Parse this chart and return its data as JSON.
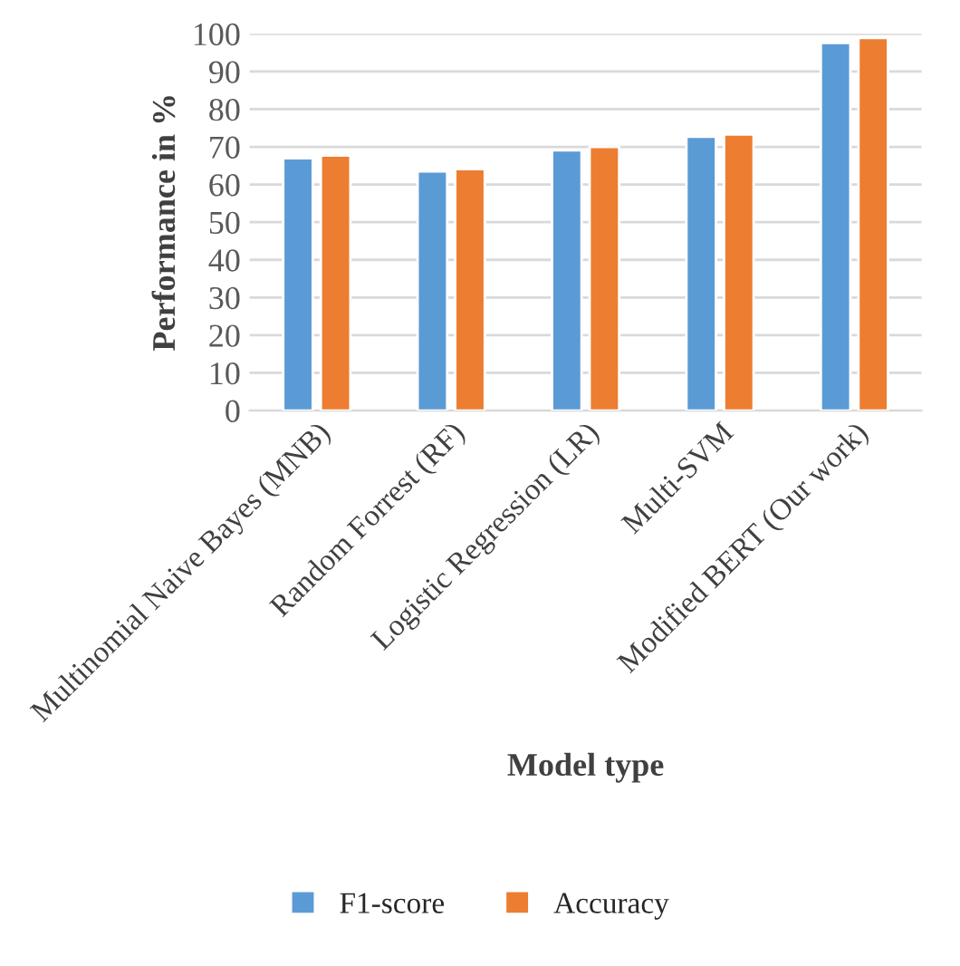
{
  "chart_data": {
    "type": "bar",
    "xlabel": "Model type",
    "ylabel": "Performance in %",
    "categories": [
      "Multinomial Naive Bayes (MNB)",
      "Random Forrest (RF)",
      "Logistic Regression (LR)",
      "Multi-SVM",
      "Modified BERT (Our work)"
    ],
    "series": [
      {
        "name": "F1-score",
        "color": "#5b9bd5",
        "values": [
          67.0,
          63.5,
          69.1,
          72.7,
          97.6
        ]
      },
      {
        "name": "Accuracy",
        "color": "#ed7d31",
        "values": [
          67.7,
          64.1,
          70.0,
          73.3,
          98.9
        ]
      }
    ],
    "ylim": [
      0,
      100
    ],
    "yticks": [
      0,
      10,
      20,
      30,
      40,
      50,
      60,
      70,
      80,
      90,
      100
    ],
    "grid": "y",
    "legend": "bottom"
  }
}
